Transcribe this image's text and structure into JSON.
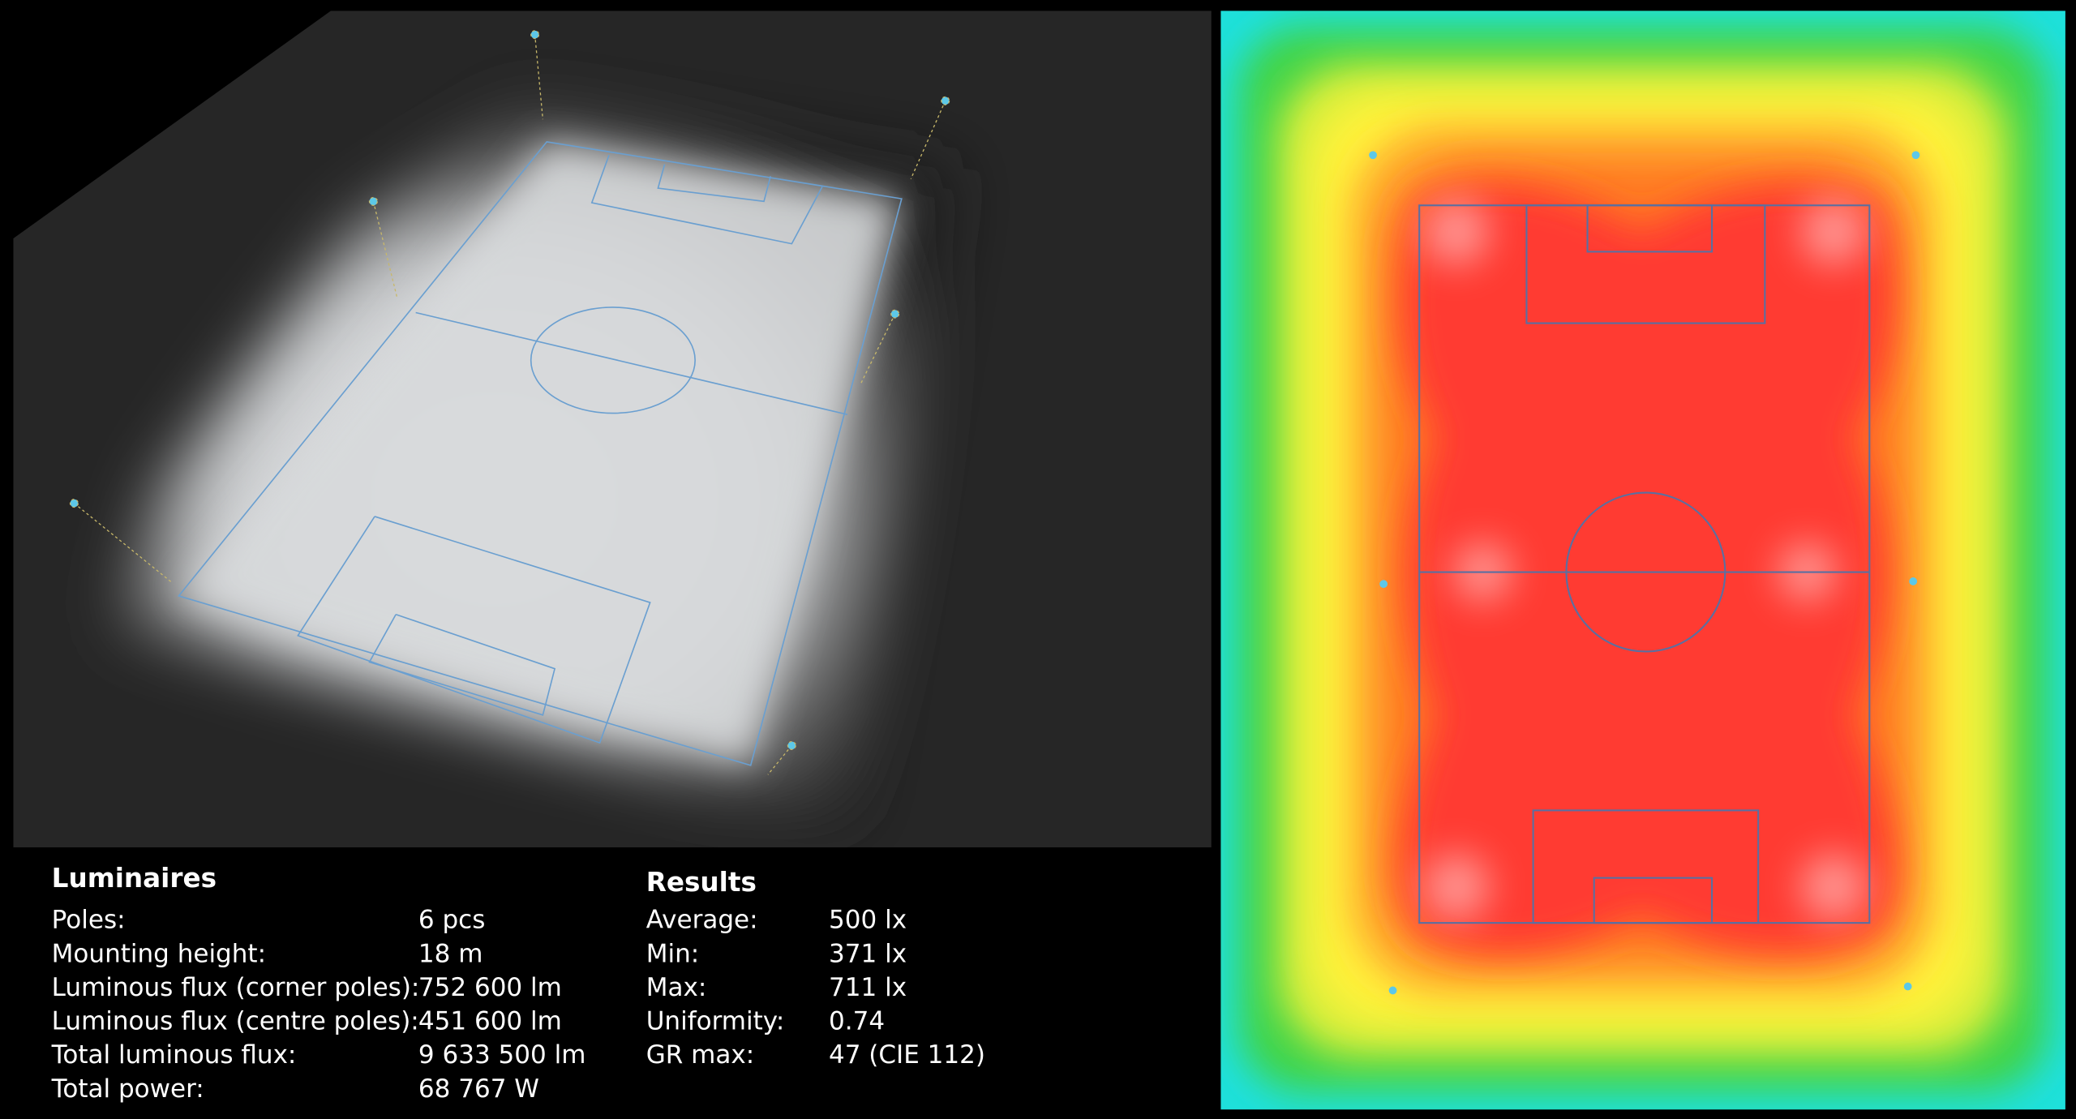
{
  "luminaires": {
    "title": "Luminaires",
    "rows": [
      {
        "label": "Poles:",
        "value": "6 pcs"
      },
      {
        "label": "Mounting height:",
        "value": "18 m"
      },
      {
        "label": "Luminous flux (corner poles):",
        "value": "752 600 lm"
      },
      {
        "label": "Luminous flux (centre poles):",
        "value": "451 600 lm"
      },
      {
        "label": "Total luminous flux:",
        "value": "9 633 500 lm"
      },
      {
        "label": "Total power:",
        "value": "68 767 W"
      }
    ]
  },
  "results": {
    "title": "Results",
    "rows": [
      {
        "label": "Average:",
        "value": "500 lx"
      },
      {
        "label": "Min:",
        "value": "371 lx"
      },
      {
        "label": "Max:",
        "value": "711 lx"
      },
      {
        "label": "Uniformity:",
        "value": "0.74"
      },
      {
        "label": "GR max:",
        "value": "47",
        "note": "(CIE 112)"
      }
    ]
  }
}
